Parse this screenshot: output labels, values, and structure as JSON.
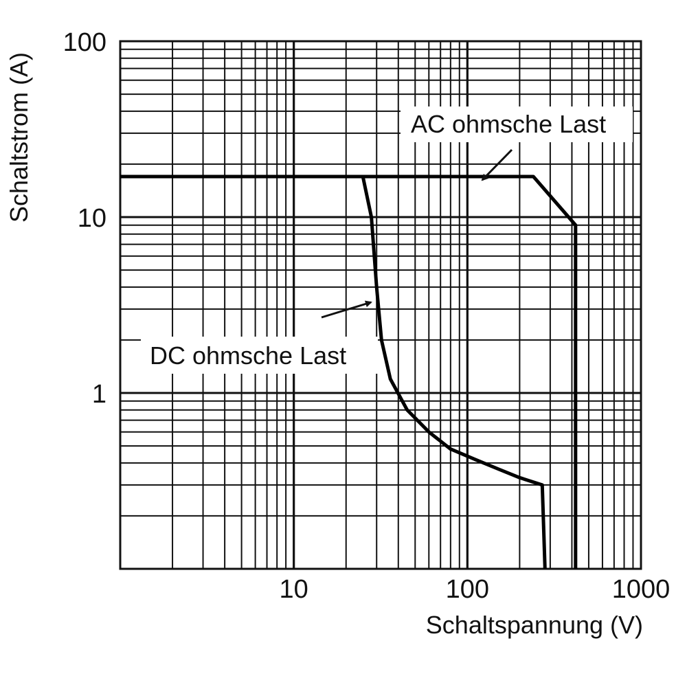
{
  "chart_data": {
    "type": "line",
    "title": "",
    "xlabel": "Schaltspannung (V)",
    "ylabel": "Schaltstrom (A)",
    "x_scale": "log",
    "y_scale": "log",
    "xlim": [
      1,
      1000
    ],
    "ylim": [
      0.1,
      100
    ],
    "grid": true,
    "x_ticks": [
      "10",
      "100",
      "1000"
    ],
    "y_ticks": [
      "100",
      "10",
      "1"
    ],
    "series": [
      {
        "name": "AC ohmsche Last",
        "x": [
          1,
          240,
          420,
          420
        ],
        "y": [
          17,
          17,
          9,
          0.1
        ]
      },
      {
        "name": "DC ohmsche Last",
        "x": [
          1,
          25,
          28,
          30,
          32,
          36,
          45,
          60,
          80,
          110,
          150,
          200,
          270,
          280
        ],
        "y": [
          17,
          17,
          10,
          4,
          2,
          1.2,
          0.8,
          0.6,
          0.48,
          0.42,
          0.37,
          0.33,
          0.3,
          0.1
        ]
      }
    ],
    "annotations": [
      {
        "text": "AC ohmsche Last",
        "points_to_series": "AC ohmsche Last"
      },
      {
        "text": "DC ohmsche Last",
        "points_to_series": "DC ohmsche Last"
      }
    ],
    "line_color": "#000000"
  }
}
